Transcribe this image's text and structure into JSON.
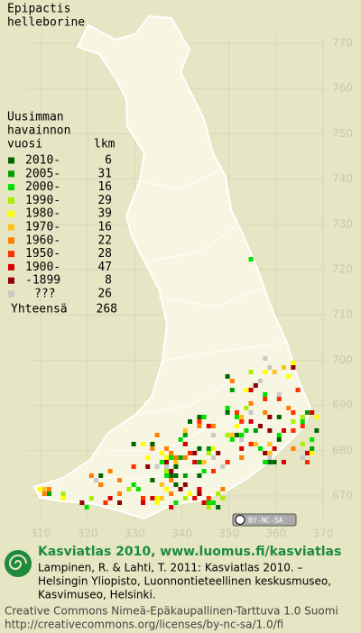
{
  "title": [
    "Epipactis",
    "helleborine"
  ],
  "legend": {
    "header": [
      "Uusimman",
      "havainnon",
      "vuosi"
    ],
    "count_header": "lkm",
    "rows": [
      {
        "label": "2010-",
        "count": 6,
        "color": "#006400"
      },
      {
        "label": "2005-",
        "count": 31,
        "color": "#00a000"
      },
      {
        "label": "2000-",
        "count": 16,
        "color": "#00e000"
      },
      {
        "label": "1990-",
        "count": 29,
        "color": "#a8f000"
      },
      {
        "label": "1980-",
        "count": 39,
        "color": "#ffff00"
      },
      {
        "label": "1970-",
        "count": 16,
        "color": "#ffc020"
      },
      {
        "label": "1960-",
        "count": 22,
        "color": "#ff8000"
      },
      {
        "label": "1950-",
        "count": 28,
        "color": "#ff3000"
      },
      {
        "label": "1900-",
        "count": 47,
        "color": "#d80000"
      },
      {
        "label": "-1899",
        "count": 8,
        "color": "#900000"
      },
      {
        "label": "???",
        "count": 26,
        "color": "#c8c8c8"
      }
    ],
    "total": {
      "label": "Yhteensä",
      "value": 268
    }
  },
  "grid": {
    "yticks": [
      770,
      760,
      750,
      740,
      730,
      720,
      710,
      700,
      690,
      680,
      670
    ],
    "xticks": [
      310,
      320,
      330,
      340,
      350,
      360,
      370
    ]
  },
  "badge": "BY-NC-SA",
  "footer": {
    "heading": "Kasviatlas 2010, www.luomus.fi/kasviatlas",
    "citation": [
      "Lampinen, R. & Lahti, T. 2011: Kasviatlas 2010. –",
      "Helsingin Yliopisto, Luonnontieteellinen keskusmuseo,",
      "Kasvimuseo, Helsinki."
    ],
    "license": [
      "Creative Commons Nimeä-Epäkaupallinen-Tarttuva 1.0 Suomi",
      "http://creativecommons.org/licenses/by-nc-sa/1.0/fi"
    ]
  }
}
